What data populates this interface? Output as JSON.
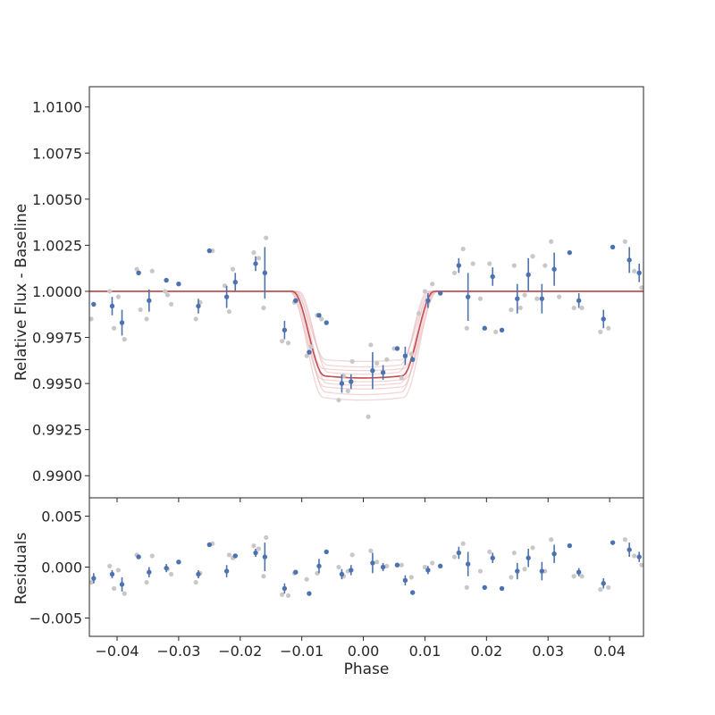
{
  "chart_data": [
    {
      "type": "scatter",
      "title": "",
      "xlabel": "",
      "ylabel": "Relative Flux - Baseline",
      "xlim": [
        -0.0445,
        0.0455
      ],
      "ylim": [
        0.9888,
        1.0111
      ],
      "xticks": [
        -0.04,
        -0.03,
        -0.02,
        -0.01,
        0.0,
        0.01,
        0.02,
        0.03,
        0.04
      ],
      "yticks": [
        "1.0100",
        "1.0075",
        "1.0050",
        "1.0025",
        "1.0000",
        "0.9975",
        "0.9950",
        "0.9925",
        "0.9900"
      ],
      "grid": false,
      "model": {
        "name": "",
        "baseline": 1.0,
        "transit_center": 0.0,
        "ingress_start": -0.0115,
        "egress_end": 0.0115,
        "best_depth": 0.0047,
        "sample_depths": [
          0.0038,
          0.0041,
          0.0043,
          0.0045,
          0.0047,
          0.0049,
          0.0051,
          0.0053,
          0.0056,
          0.0059
        ],
        "sample_half_widths": [
          0.0112,
          0.0108,
          0.0118,
          0.0105,
          0.0115,
          0.0121,
          0.011,
          0.0117,
          0.0113,
          0.0119
        ]
      },
      "binned": {
        "x": [
          -0.0438,
          -0.0408,
          -0.0392,
          -0.0365,
          -0.0348,
          -0.032,
          -0.03,
          -0.0268,
          -0.025,
          -0.0222,
          -0.0208,
          -0.0175,
          -0.016,
          -0.0128,
          -0.011,
          -0.0088,
          -0.0072,
          -0.006,
          -0.0035,
          -0.002,
          0.0015,
          0.0032,
          0.0055,
          0.0068,
          0.008,
          0.0105,
          0.0125,
          0.0155,
          0.017,
          0.0197,
          0.021,
          0.0225,
          0.025,
          0.0268,
          0.029,
          0.031,
          0.0335,
          0.035,
          0.039,
          0.0405,
          0.0432,
          0.0448
        ],
        "y": [
          0.9993,
          0.9992,
          0.9983,
          1.001,
          0.9995,
          1.0006,
          1.0004,
          0.9992,
          1.0022,
          0.9997,
          1.0005,
          1.0015,
          1.001,
          0.9979,
          0.9995,
          0.9967,
          0.9987,
          0.9983,
          0.995,
          0.9951,
          0.9957,
          0.9956,
          0.9969,
          0.9965,
          0.9963,
          0.9995,
          0.9999,
          1.0014,
          0.9997,
          0.998,
          1.0008,
          0.9979,
          0.9996,
          1.0009,
          0.9996,
          1.0012,
          1.0021,
          0.9995,
          0.9985,
          1.0024,
          1.0017,
          1.001
        ],
        "yerr": [
          0.0,
          0.0005,
          0.0007,
          0.0,
          0.0006,
          0.0,
          0.0,
          0.0004,
          0.0,
          0.0006,
          0.0005,
          0.0004,
          0.0014,
          0.0005,
          0.0,
          0.0,
          0.0,
          0.0,
          0.0005,
          0.0004,
          0.001,
          0.0004,
          0.0,
          0.0005,
          0.0,
          0.0004,
          0.0,
          0.0004,
          0.0013,
          0.0,
          0.0005,
          0.0,
          0.0008,
          0.0009,
          0.0008,
          0.0009,
          0.0,
          0.0004,
          0.0005,
          0.0,
          0.0007,
          0.0005
        ]
      },
      "raw": {
        "x": [
          -0.0442,
          -0.0412,
          -0.0405,
          -0.0398,
          -0.0388,
          -0.0368,
          -0.0362,
          -0.0352,
          -0.0343,
          -0.0322,
          -0.0318,
          -0.0312,
          -0.0272,
          -0.0265,
          -0.0245,
          -0.0225,
          -0.0218,
          -0.0212,
          -0.0178,
          -0.017,
          -0.0162,
          -0.0158,
          -0.0132,
          -0.0122,
          -0.0112,
          -0.0092,
          -0.0085,
          -0.0075,
          -0.0068,
          -0.004,
          -0.0032,
          -0.0025,
          -0.0018,
          0.0008,
          0.0012,
          0.0022,
          0.0038,
          0.005,
          0.0062,
          0.0078,
          0.009,
          0.01,
          0.0112,
          0.0148,
          0.0162,
          0.0168,
          0.0178,
          0.019,
          0.0205,
          0.0215,
          0.024,
          0.0245,
          0.0255,
          0.0262,
          0.0275,
          0.0282,
          0.0295,
          0.0305,
          0.0318,
          0.0342,
          0.0355,
          0.0385,
          0.0398,
          0.0425,
          0.044,
          0.0452
        ],
        "y": [
          0.9985,
          1.0,
          0.998,
          0.9997,
          0.9974,
          1.0012,
          0.999,
          0.9985,
          1.0011,
          1.0,
          0.9998,
          0.9993,
          0.9985,
          0.9994,
          1.0022,
          1.0003,
          0.9989,
          1.0012,
          1.0021,
          1.0018,
          0.9991,
          1.0029,
          0.9973,
          0.9972,
          0.9994,
          0.9965,
          0.997,
          0.9987,
          0.9985,
          0.9941,
          0.9954,
          0.9946,
          0.9962,
          0.9932,
          0.9971,
          0.9961,
          0.9963,
          0.9969,
          0.9953,
          0.9966,
          0.9988,
          1.0,
          1.0004,
          1.001,
          1.0023,
          0.998,
          1.0015,
          0.9996,
          1.0015,
          0.9978,
          0.999,
          1.0014,
          0.9991,
          0.9998,
          1.0019,
          0.9996,
          1.0014,
          1.0027,
          0.9997,
          0.9991,
          0.9991,
          0.9978,
          0.998,
          1.0027,
          1.0011,
          1.0002
        ]
      }
    },
    {
      "type": "scatter",
      "title": "",
      "xlabel": "Phase",
      "ylabel": "Residuals",
      "xlim": [
        -0.0445,
        0.0455
      ],
      "ylim": [
        -0.0068,
        0.0068
      ],
      "xticks": [
        -0.04,
        -0.03,
        -0.02,
        -0.01,
        0.0,
        0.01,
        0.02,
        0.03,
        0.04
      ],
      "xtick_labels": [
        "−0.04",
        "−0.03",
        "−0.02",
        "−0.01",
        "0.00",
        "0.01",
        "0.02",
        "0.03",
        "0.04"
      ],
      "yticks": [
        0.005,
        0.0,
        -0.005
      ],
      "ytick_labels": [
        "0.005",
        "0.000",
        "−0.005"
      ],
      "grid": false,
      "binned": {
        "x": [
          -0.0438,
          -0.0408,
          -0.0392,
          -0.0365,
          -0.0348,
          -0.032,
          -0.03,
          -0.0268,
          -0.025,
          -0.0222,
          -0.0208,
          -0.0175,
          -0.016,
          -0.0128,
          -0.011,
          -0.0088,
          -0.0072,
          -0.006,
          -0.0035,
          -0.002,
          0.0015,
          0.0032,
          0.0055,
          0.0068,
          0.008,
          0.0105,
          0.0125,
          0.0155,
          0.017,
          0.0197,
          0.021,
          0.0225,
          0.025,
          0.0268,
          0.029,
          0.031,
          0.0335,
          0.035,
          0.039,
          0.0405,
          0.0432,
          0.0448
        ],
        "y": [
          -0.0011,
          -0.0007,
          -0.0017,
          0.001,
          -0.0005,
          -0.0001,
          0.0005,
          -0.0007,
          0.0022,
          -0.0004,
          0.0011,
          0.0014,
          0.001,
          -0.0021,
          -0.0005,
          -0.0026,
          0.0001,
          0.0015,
          -0.0007,
          -0.0003,
          0.0004,
          0.0,
          0.0002,
          -0.0013,
          -0.0025,
          -0.0003,
          0.0001,
          0.0014,
          0.0003,
          -0.002,
          0.0009,
          -0.0021,
          -0.0004,
          0.0009,
          -0.0004,
          0.0013,
          0.0021,
          -0.0005,
          -0.0016,
          0.0024,
          0.0017,
          0.001
        ],
        "yerr": [
          0.0005,
          0.0004,
          0.0007,
          0.0,
          0.0005,
          0.0004,
          0.0,
          0.0004,
          0.0,
          0.0006,
          0.0,
          0.0004,
          0.0014,
          0.0005,
          0.0,
          0.0,
          0.0007,
          0.0,
          0.0005,
          0.0005,
          0.001,
          0.0004,
          0.0,
          0.0005,
          0.0,
          0.0004,
          0.0,
          0.0006,
          0.0012,
          0.0,
          0.0005,
          0.0,
          0.0008,
          0.0009,
          0.0009,
          0.0009,
          0.0,
          0.0004,
          0.0005,
          0.0,
          0.0007,
          0.0005
        ]
      },
      "raw": {
        "x": [
          -0.0442,
          -0.0412,
          -0.0405,
          -0.0398,
          -0.0388,
          -0.0368,
          -0.0352,
          -0.0343,
          -0.0318,
          -0.0312,
          -0.0272,
          -0.0265,
          -0.0245,
          -0.0218,
          -0.0212,
          -0.0178,
          -0.017,
          -0.0162,
          -0.0158,
          -0.0132,
          -0.0122,
          -0.0112,
          -0.0092,
          -0.0075,
          -0.004,
          -0.0032,
          -0.0025,
          -0.0018,
          0.0012,
          0.0022,
          0.0038,
          0.0062,
          0.0078,
          0.01,
          0.0112,
          0.0148,
          0.0162,
          0.0168,
          0.019,
          0.0205,
          0.024,
          0.0245,
          0.0262,
          0.0275,
          0.0295,
          0.0305,
          0.0342,
          0.0355,
          0.0385,
          0.0398,
          0.0425,
          0.044,
          0.0452
        ],
        "y": [
          -0.0015,
          0.0001,
          -0.0021,
          -0.0003,
          -0.0026,
          0.0012,
          -0.0015,
          0.0011,
          -0.0002,
          -0.0007,
          -0.0015,
          -0.0006,
          0.0023,
          0.0012,
          0.0009,
          0.0021,
          0.0018,
          -0.0009,
          0.0029,
          -0.0027,
          -0.0028,
          -0.0006,
          -0.0012,
          -0.0006,
          0.0,
          -0.0009,
          -0.0004,
          0.0012,
          0.0016,
          0.0005,
          0.0001,
          0.0002,
          -0.001,
          0.0,
          0.0004,
          0.001,
          0.0023,
          -0.002,
          -0.0004,
          0.0015,
          -0.001,
          0.0014,
          -0.0002,
          0.0019,
          -0.0004,
          0.0027,
          -0.0009,
          -0.0009,
          -0.0022,
          -0.002,
          0.0027,
          0.0011,
          0.0002
        ]
      }
    }
  ],
  "colors": {
    "binned_marker": "#4C72B0",
    "raw_marker": "#C8C8C8",
    "best_model": "#C44E52",
    "sample_models": "#E5B4B6",
    "axes": "#262626"
  }
}
